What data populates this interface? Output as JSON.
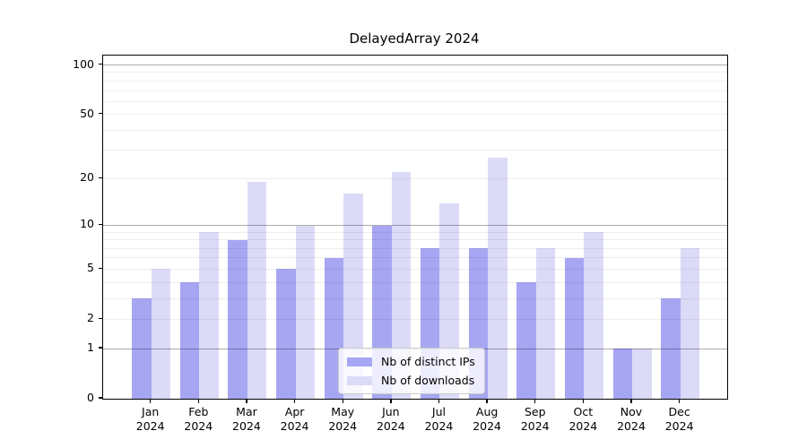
{
  "title": "DelayedArray 2024",
  "chart_data": {
    "type": "bar",
    "title": "DelayedArray 2024",
    "categories": [
      "Jan",
      "Feb",
      "Mar",
      "Apr",
      "May",
      "Jun",
      "Jul",
      "Aug",
      "Sep",
      "Oct",
      "Nov",
      "Dec"
    ],
    "category_year": "2024",
    "series": [
      {
        "name": "Nb of distinct IPs",
        "color": "#a6a6f3",
        "values": [
          3,
          4,
          8,
          5,
          6,
          10,
          7,
          7,
          4,
          6,
          1,
          3
        ]
      },
      {
        "name": "Nb of downloads",
        "color": "#dbdbf8",
        "values": [
          5,
          9,
          19,
          10,
          16,
          22,
          14,
          27,
          7,
          9,
          1,
          7
        ]
      }
    ],
    "yticks": [
      0,
      1,
      2,
      5,
      10,
      20,
      50,
      100
    ],
    "minor_gridlines": [
      2,
      3,
      4,
      5,
      6,
      7,
      8,
      9,
      20,
      30,
      40,
      50,
      60,
      70,
      80,
      90
    ],
    "major_gridlines": [
      1,
      10,
      100
    ],
    "yscale": "log1p",
    "ylim": [
      0,
      113
    ],
    "grid": true,
    "legend_position": "lower center",
    "frame_color": "#000000",
    "background_color": "#ffffff"
  }
}
